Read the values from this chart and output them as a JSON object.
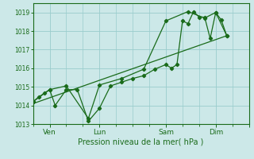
{
  "xlabel": "Pression niveau de la mer( hPa )",
  "bg_color": "#cce8e8",
  "grid_color": "#99cccc",
  "line_color": "#1a6b1a",
  "ylim": [
    1013,
    1019.5
  ],
  "yticks": [
    1013,
    1014,
    1015,
    1016,
    1017,
    1018,
    1019
  ],
  "xlim": [
    0,
    312
  ],
  "x_tick_positions": [
    24,
    96,
    192,
    264,
    312
  ],
  "x_tick_labels": [
    "Ven",
    "Lun",
    "Sam",
    "Dim",
    ""
  ],
  "series1_x": [
    0,
    8,
    16,
    24,
    32,
    48,
    64,
    80,
    96,
    112,
    128,
    144,
    160,
    176,
    192,
    200,
    208,
    216,
    224,
    232,
    240,
    248,
    256,
    264,
    272,
    280
  ],
  "series1_y": [
    1014.2,
    1014.45,
    1014.65,
    1014.85,
    1014.0,
    1014.85,
    1014.85,
    1013.15,
    1013.85,
    1015.05,
    1015.25,
    1015.45,
    1015.6,
    1015.95,
    1016.2,
    1016.0,
    1016.2,
    1018.55,
    1018.4,
    1019.05,
    1018.75,
    1018.75,
    1017.6,
    1019.0,
    1018.6,
    1017.75
  ],
  "series2_x": [
    0,
    24,
    48,
    80,
    96,
    128,
    160,
    192,
    224,
    248,
    264,
    280
  ],
  "series2_y": [
    1014.2,
    1014.85,
    1015.05,
    1013.3,
    1015.1,
    1015.45,
    1015.95,
    1018.55,
    1019.05,
    1018.7,
    1019.0,
    1017.75
  ],
  "trend_x": [
    0,
    280
  ],
  "trend_y": [
    1014.1,
    1017.75
  ]
}
